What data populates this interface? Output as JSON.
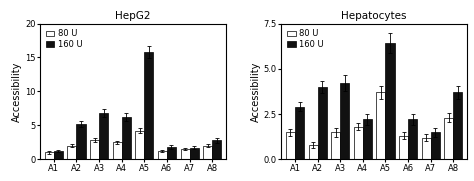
{
  "chart_data": [
    {
      "type": "bar",
      "title": "HepG2",
      "ylabel": "Accessibility",
      "categories": [
        "A1",
        "A2",
        "A3",
        "A4",
        "A5",
        "A6",
        "A7",
        "A8"
      ],
      "series": [
        {
          "name": "80 U",
          "color": "#ffffff",
          "values": [
            1.0,
            2.0,
            2.8,
            2.5,
            4.2,
            1.2,
            1.5,
            2.0
          ],
          "errors": [
            0.15,
            0.2,
            0.3,
            0.25,
            0.4,
            0.2,
            0.2,
            0.25
          ]
        },
        {
          "name": "160 U",
          "color": "#111111",
          "values": [
            1.2,
            5.2,
            6.8,
            6.2,
            15.8,
            1.8,
            1.7,
            2.8
          ],
          "errors": [
            0.15,
            0.5,
            0.6,
            0.6,
            0.9,
            0.3,
            0.25,
            0.35
          ]
        }
      ],
      "ylim": [
        0,
        20
      ],
      "yticks": [
        0,
        5,
        10,
        15,
        20
      ],
      "legend": "upper left"
    },
    {
      "type": "bar",
      "title": "Hepatocytes",
      "ylabel": "Accessibility",
      "categories": [
        "A1",
        "A2",
        "A3",
        "A4",
        "A5",
        "A6",
        "A7",
        "A8"
      ],
      "series": [
        {
          "name": "80 U",
          "color": "#ffffff",
          "values": [
            1.5,
            0.8,
            1.5,
            1.8,
            3.7,
            1.3,
            1.2,
            2.3
          ],
          "errors": [
            0.2,
            0.15,
            0.25,
            0.2,
            0.35,
            0.2,
            0.2,
            0.25
          ]
        },
        {
          "name": "160 U",
          "color": "#111111",
          "values": [
            2.9,
            4.0,
            4.2,
            2.2,
            6.4,
            2.2,
            1.5,
            3.7
          ],
          "errors": [
            0.25,
            0.35,
            0.45,
            0.3,
            0.55,
            0.3,
            0.25,
            0.35
          ]
        }
      ],
      "ylim": [
        0.0,
        7.5
      ],
      "yticks": [
        0.0,
        2.5,
        5.0,
        7.5
      ],
      "legend": "upper left"
    }
  ]
}
